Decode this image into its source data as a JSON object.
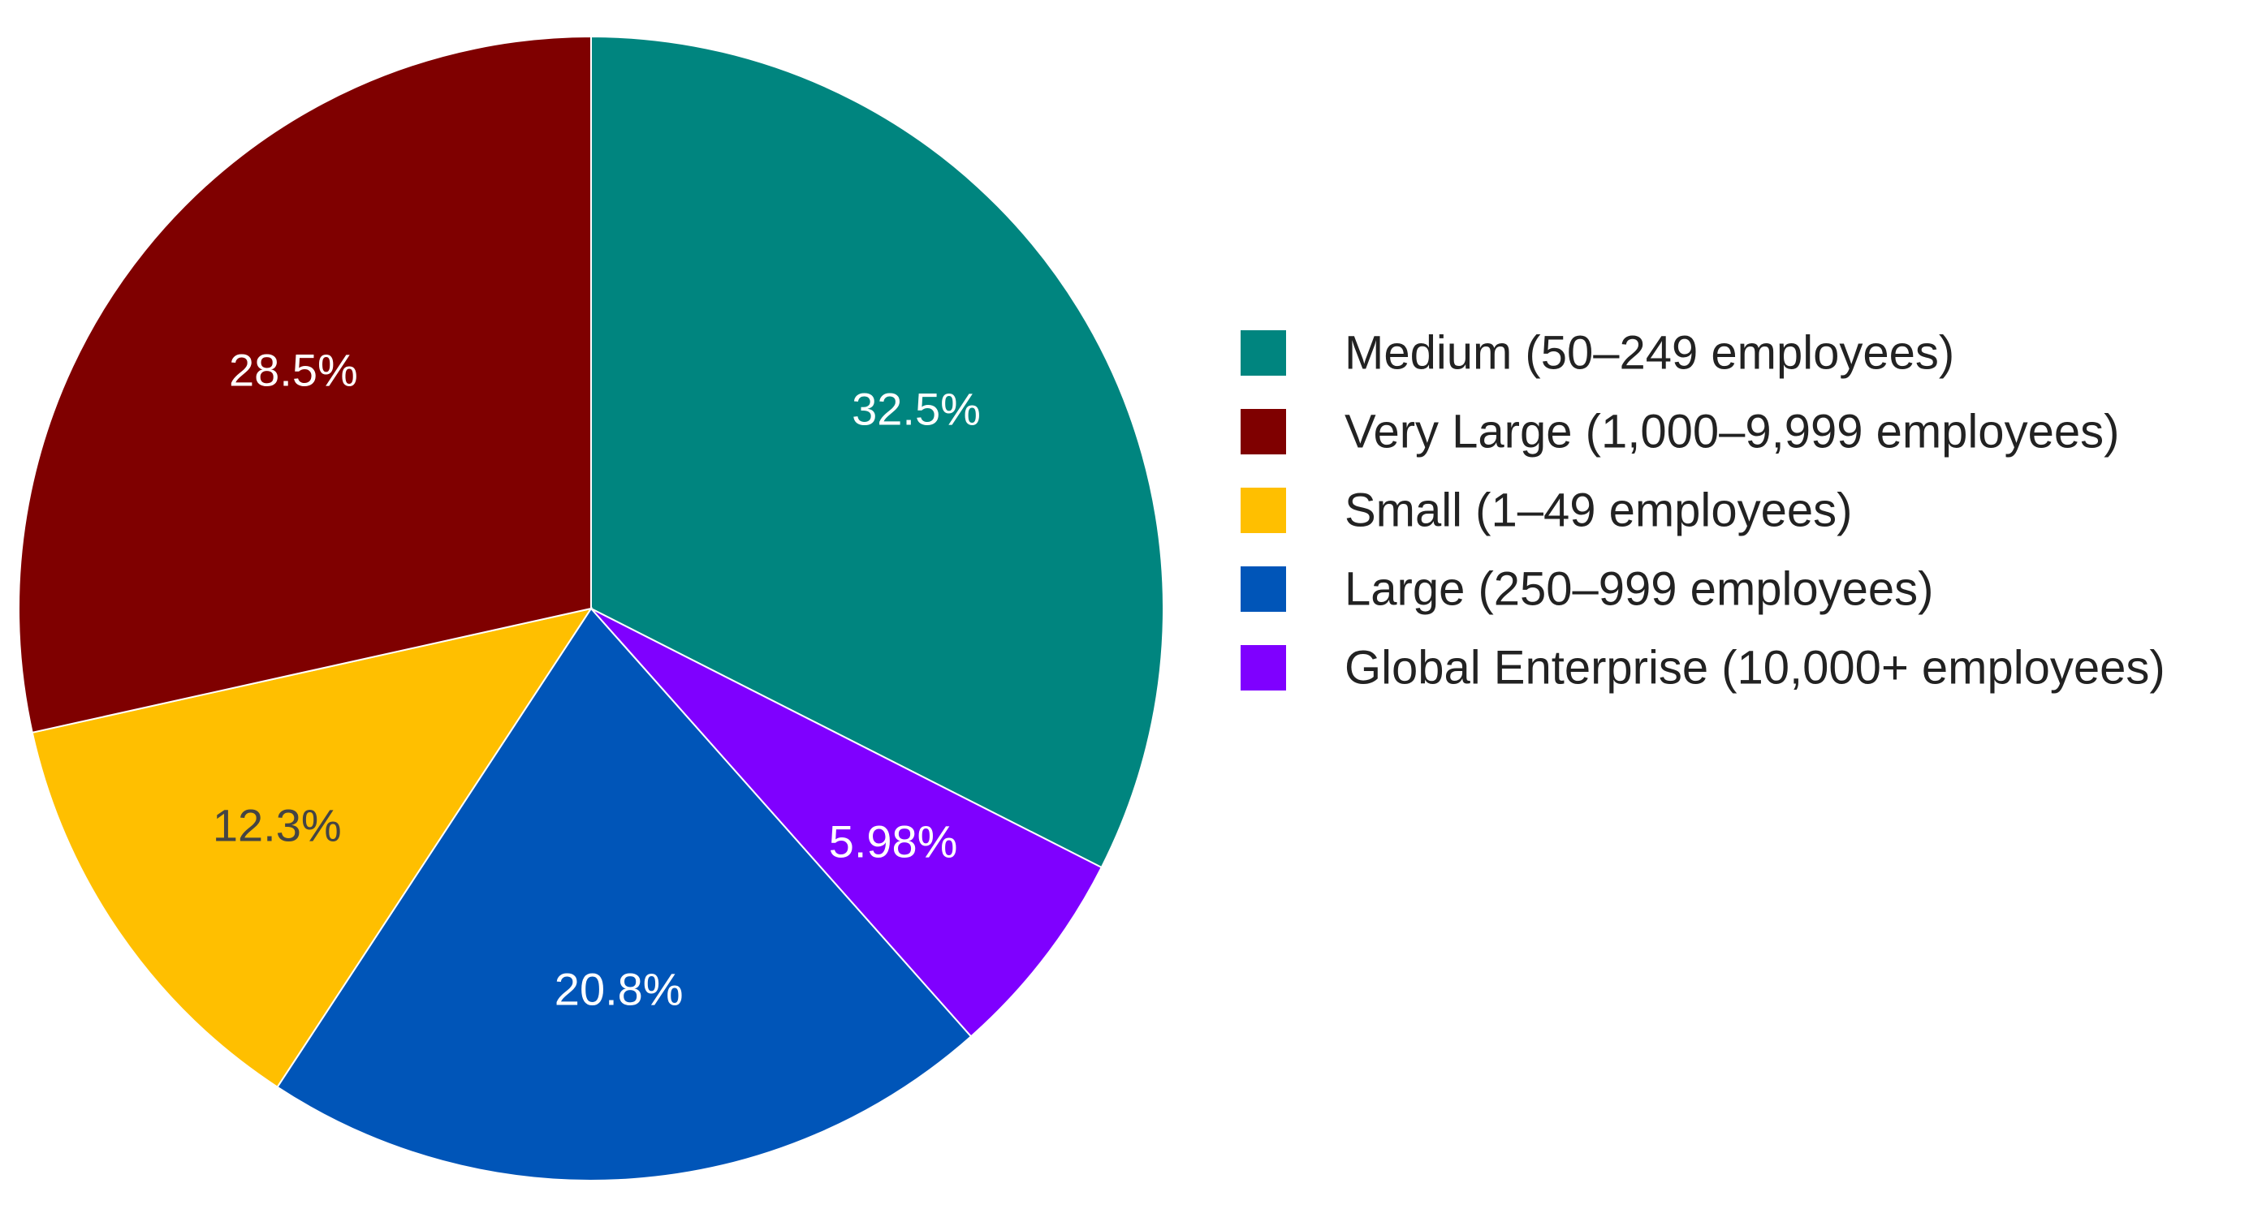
{
  "chart_data": {
    "type": "pie",
    "title": "",
    "start": "12 o'clock",
    "direction": "clockwise",
    "legend_position": "right",
    "slices": [
      {
        "label": "Medium (50–249 employees)",
        "value": 32.5,
        "display": "32.5%",
        "color": "#00857F",
        "text_color": "#ffffff"
      },
      {
        "label": "Global Enterprise (10,000+ employees)",
        "value": 5.98,
        "display": "5.98%",
        "color": "#7F00FF",
        "text_color": "#ffffff"
      },
      {
        "label": "Large (250–999 employees)",
        "value": 20.8,
        "display": "20.8%",
        "color": "#0055B8",
        "text_color": "#ffffff"
      },
      {
        "label": "Small (1–49 employees)",
        "value": 12.3,
        "display": "12.3%",
        "color": "#FFBF00",
        "text_color": "#444444"
      },
      {
        "label": "Very Large (1,000–9,999 employees)",
        "value": 28.5,
        "display": "28.5%",
        "color": "#7F0000",
        "text_color": "#ffffff"
      }
    ],
    "legend": [
      {
        "label": "Medium (50–249 employees)",
        "color": "#00857F"
      },
      {
        "label": "Very Large (1,000–9,999 employees)",
        "color": "#7F0000"
      },
      {
        "label": "Small (1–49 employees)",
        "color": "#FFBF00"
      },
      {
        "label": "Large (250–999 employees)",
        "color": "#0055B8"
      },
      {
        "label": "Global Enterprise (10,000+ employees)",
        "color": "#7F00FF"
      }
    ]
  }
}
